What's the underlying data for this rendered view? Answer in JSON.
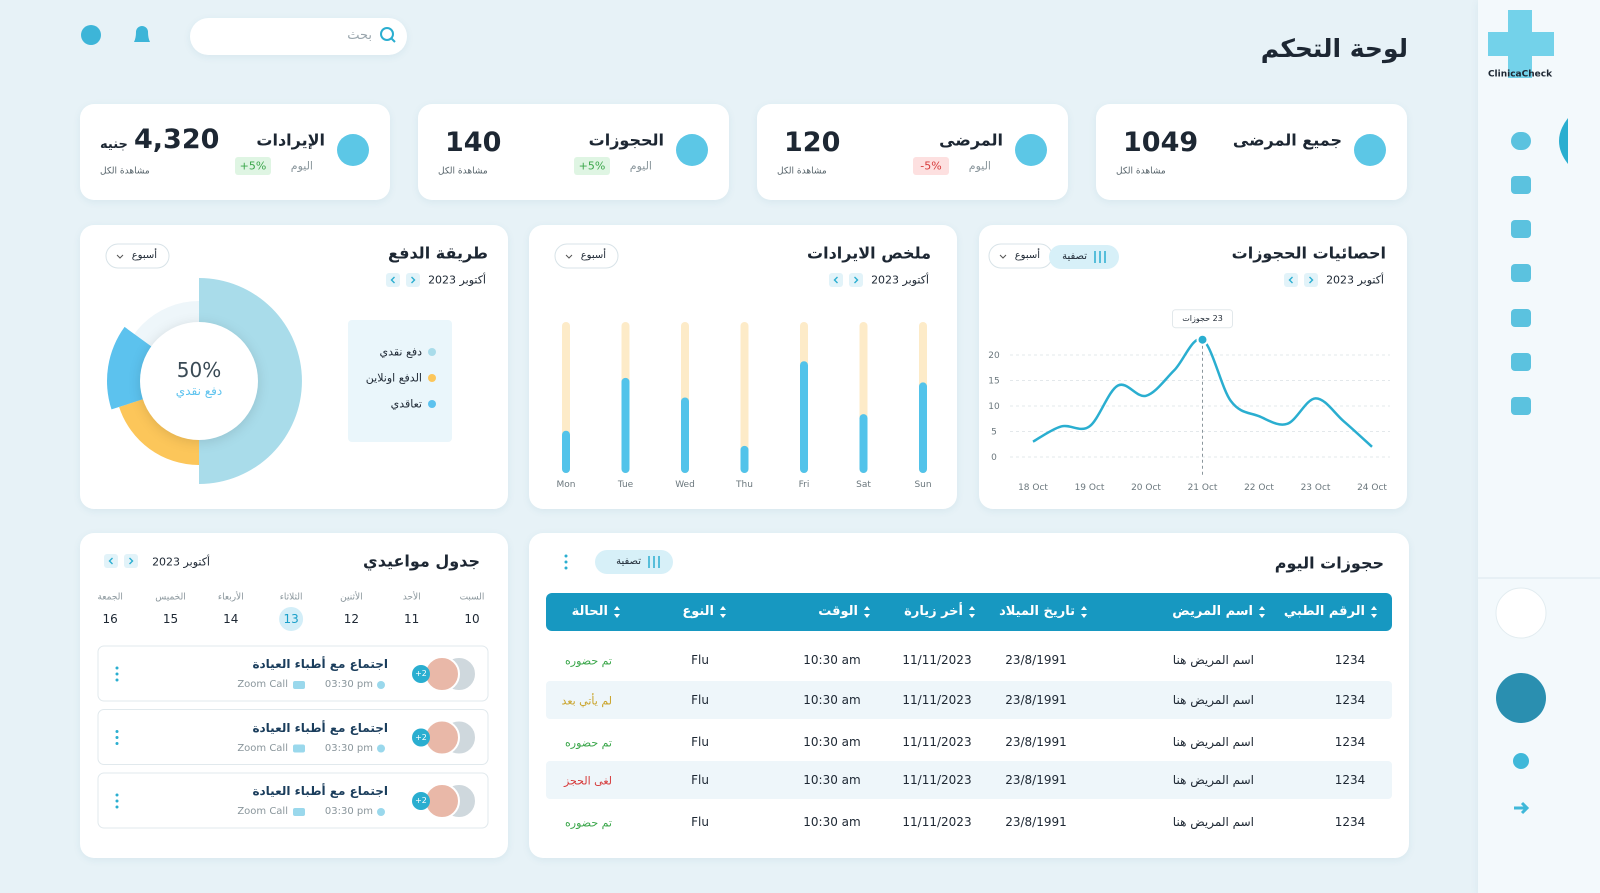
{
  "sidebar": {
    "brand": "ClinicaCheck"
  },
  "header": {
    "title": "لوحة التحكم",
    "search_placeholder": "بحث"
  },
  "stats": [
    {
      "title": "جميع المرضى",
      "value": 1049,
      "link": "مشاهدة الكل"
    },
    {
      "title": "المرضى",
      "value": 120,
      "period": "اليوم",
      "change": -5,
      "change_label": "-5%",
      "link": "مشاهدة الكل"
    },
    {
      "title": "الحجوزات",
      "value": 140,
      "period": "اليوم",
      "change": 5,
      "change_label": "+5%",
      "link": "مشاهدة الكل"
    },
    {
      "title": "الإيرادات",
      "value": 4320,
      "value_label": "4,320",
      "unit": "جنيه",
      "period": "اليوم",
      "change": 5,
      "change_label": "+5%",
      "link": "مشاهدة الكل"
    }
  ],
  "booking_stats": {
    "period": "أكتوبر 2023",
    "filter": "تصفية",
    "range": "أسبوع",
    "tooltip": "23 حجوزات",
    "chart_data": {
      "type": "line",
      "title": "احصائيات الحجوزات",
      "categories": [
        "18 Oct",
        null,
        "19 Oct",
        null,
        "20 Oct",
        null,
        "21 Oct",
        null,
        "22 Oct",
        null,
        "23 Oct",
        null,
        "24 Oct"
      ],
      "values": [
        3,
        6,
        6,
        14,
        12,
        17,
        23,
        11,
        8,
        6.5,
        11.5,
        7,
        2
      ],
      "color": "#2aaed0",
      "ylim": [
        0,
        25
      ],
      "yticks": [
        0,
        5,
        10,
        15,
        20
      ],
      "grid": true
    }
  },
  "revenue_summary": {
    "period": "أكتوبر 2023",
    "range": "أسبوع",
    "chart_data": {
      "type": "bar",
      "title": "ملخص الايرادات",
      "categories": [
        "Mon",
        "Tue",
        "Wed",
        "Thu",
        "Fri",
        "Sat",
        "Sun"
      ],
      "values": [
        28,
        63,
        50,
        18,
        74,
        39,
        60
      ],
      "color": "#52c3ea",
      "track_color": "#fdebc8",
      "ylim": [
        0,
        100
      ]
    }
  },
  "payment_method": {
    "period": "أكتوبر 2023",
    "range": "أسبوع",
    "chart_data": {
      "type": "pie",
      "title": "طريقة الدفع",
      "categories": [
        "دفع نقدي",
        "الدفع اونلاين",
        "تعاقدي"
      ],
      "values": [
        50,
        20,
        15
      ],
      "value_labels": [
        "50%",
        null,
        null
      ],
      "colors": [
        "#a9dcea",
        "#fcc65a",
        "#5cc2ee"
      ]
    }
  },
  "schedule": {
    "title": "جدول مواعيدي",
    "period": "أكتوبر 2023",
    "days": [
      {
        "name": "السبت",
        "date": 10
      },
      {
        "name": "الأحد",
        "date": 11
      },
      {
        "name": "الأثنين",
        "date": 12
      },
      {
        "name": "الثلاثاء",
        "date": 13,
        "selected": true
      },
      {
        "name": "الأربعاء",
        "date": 14
      },
      {
        "name": "الخميس",
        "date": 15
      },
      {
        "name": "الجمعة",
        "date": 16
      }
    ],
    "events": [
      {
        "title": "اجتماع مع أطباء العيادة",
        "platform": "Zoom Call",
        "time": "03:30 pm",
        "attendees": 2,
        "attendees_label": "+2"
      },
      {
        "title": "اجتماع مع أطباء العيادة",
        "platform": "Zoom Call",
        "time": "03:30 pm",
        "attendees": 2,
        "attendees_label": "+2"
      },
      {
        "title": "اجتماع مع أطباء العيادة",
        "platform": "Zoom Call",
        "time": "03:30 pm",
        "attendees": 2,
        "attendees_label": "+2"
      }
    ]
  },
  "bookings_today": {
    "title": "حجوزات اليوم",
    "filter": "تصفية",
    "columns": [
      "الرقم الطبي",
      "اسم المريض",
      "تاريخ الميلاد",
      "أخر زيارة",
      "الوقت",
      "النوع",
      "الحالة"
    ],
    "rows": [
      [
        1234,
        "اسم المريض هنا",
        "23/8/1991",
        "11/11/2023",
        "10:30 am",
        "Flu",
        "تم حضوره"
      ],
      [
        1234,
        "اسم المريض هنا",
        "23/8/1991",
        "11/11/2023",
        "10:30 am",
        "Flu",
        "لم يأتي بعد"
      ],
      [
        1234,
        "اسم المريض هنا",
        "23/8/1991",
        "11/11/2023",
        "10:30 am",
        "Flu",
        "تم حضوره"
      ],
      [
        1234,
        "اسم المريض هنا",
        "23/8/1991",
        "11/11/2023",
        "10:30 am",
        "Flu",
        "لغى الحجز"
      ],
      [
        1234,
        "اسم المريض هنا",
        "23/8/1991",
        "11/11/2023",
        "10:30 am",
        "Flu",
        "تم حضوره"
      ]
    ],
    "status_colors": [
      "#3aa64a",
      "#c9a227",
      "#3aa64a",
      "#d63a3a",
      "#3aa64a"
    ]
  }
}
